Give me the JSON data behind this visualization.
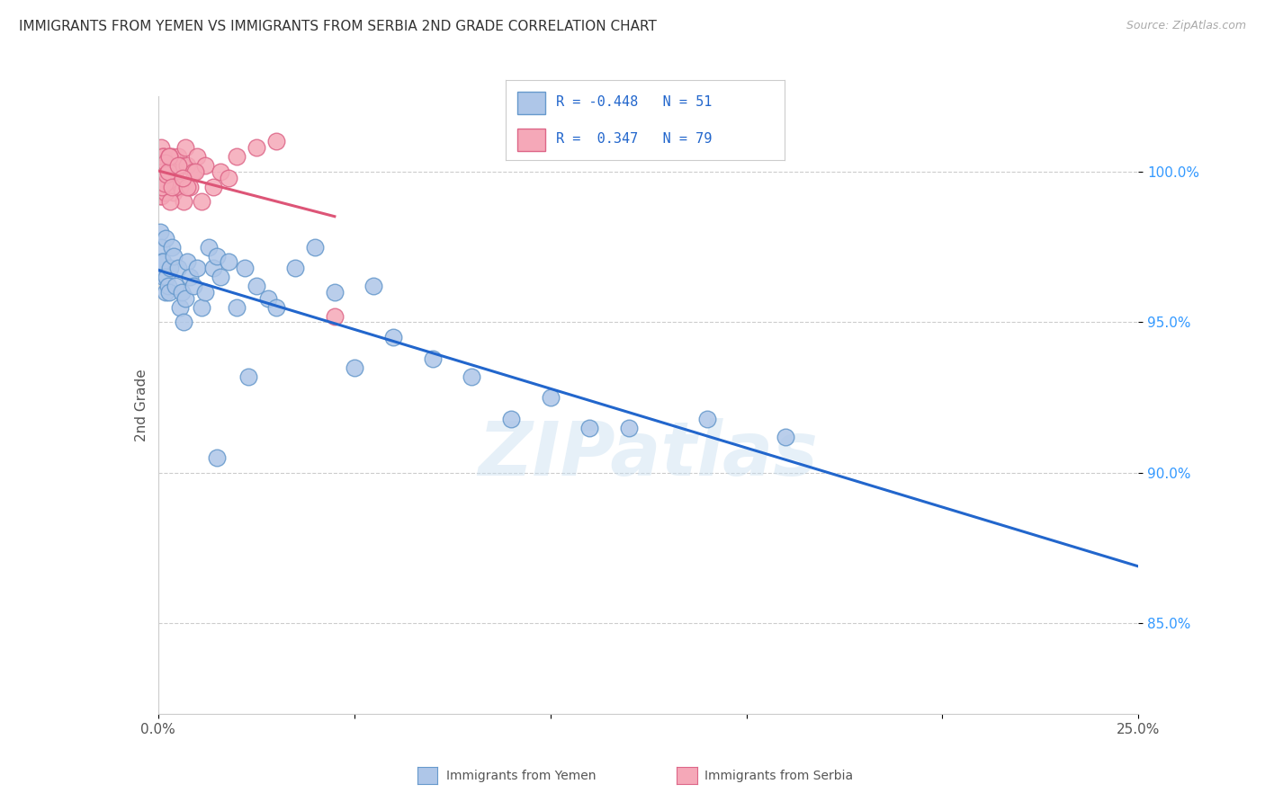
{
  "title": "IMMIGRANTS FROM YEMEN VS IMMIGRANTS FROM SERBIA 2ND GRADE CORRELATION CHART",
  "source": "Source: ZipAtlas.com",
  "ylabel": "2nd Grade",
  "xlim": [
    0.0,
    25.0
  ],
  "ylim": [
    82.0,
    102.5
  ],
  "series_yemen": {
    "label": "Immigrants from Yemen",
    "color_fill": "#aec6e8",
    "color_edge": "#6699cc",
    "R": -0.448,
    "N": 51,
    "trend_color": "#2266cc",
    "x": [
      0.05,
      0.08,
      0.1,
      0.12,
      0.15,
      0.18,
      0.2,
      0.22,
      0.25,
      0.28,
      0.3,
      0.35,
      0.4,
      0.45,
      0.5,
      0.55,
      0.6,
      0.65,
      0.7,
      0.75,
      0.8,
      0.9,
      1.0,
      1.1,
      1.2,
      1.3,
      1.4,
      1.5,
      1.6,
      1.8,
      2.0,
      2.2,
      2.3,
      2.5,
      2.8,
      3.0,
      3.5,
      4.0,
      4.5,
      5.0,
      5.5,
      6.0,
      7.0,
      8.0,
      9.0,
      10.0,
      11.0,
      12.0,
      14.0,
      16.0,
      1.5
    ],
    "y": [
      98.0,
      97.5,
      97.0,
      97.0,
      96.5,
      96.0,
      97.8,
      96.5,
      96.2,
      96.0,
      96.8,
      97.5,
      97.2,
      96.2,
      96.8,
      95.5,
      96.0,
      95.0,
      95.8,
      97.0,
      96.5,
      96.2,
      96.8,
      95.5,
      96.0,
      97.5,
      96.8,
      97.2,
      96.5,
      97.0,
      95.5,
      96.8,
      93.2,
      96.2,
      95.8,
      95.5,
      96.8,
      97.5,
      96.0,
      93.5,
      96.2,
      94.5,
      93.8,
      93.2,
      91.8,
      92.5,
      91.5,
      91.5,
      91.8,
      91.2,
      90.5
    ]
  },
  "series_serbia": {
    "label": "Immigrants from Serbia",
    "color_fill": "#f5a8b8",
    "color_edge": "#dd6688",
    "R": 0.347,
    "N": 79,
    "trend_color": "#dd5577",
    "x": [
      0.02,
      0.03,
      0.04,
      0.05,
      0.06,
      0.07,
      0.08,
      0.09,
      0.1,
      0.11,
      0.12,
      0.13,
      0.14,
      0.15,
      0.16,
      0.17,
      0.18,
      0.19,
      0.2,
      0.21,
      0.22,
      0.23,
      0.24,
      0.25,
      0.27,
      0.28,
      0.3,
      0.32,
      0.35,
      0.38,
      0.4,
      0.45,
      0.5,
      0.55,
      0.6,
      0.65,
      0.7,
      0.75,
      0.8,
      0.9,
      1.0,
      1.1,
      1.2,
      1.4,
      1.6,
      1.8,
      2.0,
      2.5,
      3.0,
      0.06,
      0.09,
      0.12,
      0.15,
      0.18,
      0.21,
      0.08,
      0.11,
      0.14,
      0.17,
      0.2,
      0.23,
      0.26,
      0.29,
      0.05,
      0.07,
      0.1,
      0.13,
      0.16,
      0.19,
      0.22,
      0.25,
      0.28,
      0.31,
      0.34,
      4.5,
      0.95,
      0.75,
      0.52,
      0.62
    ],
    "y": [
      99.5,
      100.2,
      100.0,
      99.8,
      100.5,
      99.2,
      100.8,
      99.5,
      100.0,
      99.3,
      100.2,
      99.7,
      100.5,
      99.8,
      100.1,
      99.4,
      100.0,
      99.6,
      100.3,
      99.9,
      100.0,
      99.5,
      100.0,
      99.8,
      100.2,
      99.7,
      99.5,
      100.0,
      100.5,
      99.8,
      99.3,
      100.0,
      100.5,
      99.5,
      100.2,
      99.0,
      100.8,
      100.2,
      99.5,
      100.0,
      100.5,
      99.0,
      100.2,
      99.5,
      100.0,
      99.8,
      100.5,
      100.8,
      101.0,
      100.0,
      99.5,
      100.3,
      99.8,
      100.2,
      99.5,
      99.2,
      100.5,
      99.8,
      100.0,
      99.3,
      100.2,
      99.7,
      100.5,
      99.8,
      100.1,
      99.5,
      100.0,
      99.6,
      100.3,
      99.9,
      100.0,
      100.5,
      99.0,
      99.5,
      95.2,
      100.0,
      99.5,
      100.2,
      99.8
    ]
  },
  "watermark": "ZIPatlas",
  "background_color": "#ffffff",
  "grid_color": "#cccccc"
}
